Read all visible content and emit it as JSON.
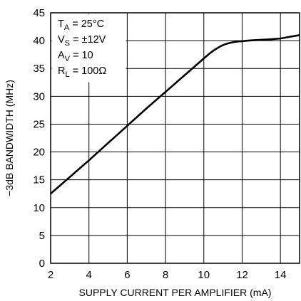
{
  "chart_data": {
    "type": "line",
    "xlabel": "SUPPLY CURRENT PER AMPLIFIER (mA)",
    "ylabel": "−3dB BANDWIDTH (MHz)",
    "xlim": [
      2,
      15
    ],
    "ylim": [
      0,
      45
    ],
    "x_ticks": [
      2,
      4,
      6,
      8,
      10,
      12,
      14
    ],
    "y_ticks": [
      0,
      5,
      10,
      15,
      20,
      25,
      30,
      35,
      40,
      45
    ],
    "grid": true,
    "conditions": [
      {
        "main": "T",
        "sub": "A",
        "rest": " = 25°C"
      },
      {
        "main": "V",
        "sub": "S",
        "rest": " = ±12V"
      },
      {
        "main": "A",
        "sub": "V",
        "rest": " = 10"
      },
      {
        "main": "R",
        "sub": "L",
        "rest": " = 100Ω"
      }
    ],
    "series": [
      {
        "x": [
          2,
          3,
          4,
          5,
          6,
          7,
          8,
          9,
          10,
          10.5,
          11,
          11.5,
          12,
          12.5,
          13,
          13.5,
          14,
          14.5,
          15
        ],
        "y": [
          12.5,
          15.5,
          18.5,
          21.6,
          24.7,
          27.8,
          30.8,
          33.8,
          36.8,
          38.2,
          39.2,
          39.7,
          39.9,
          40.05,
          40.15,
          40.25,
          40.4,
          40.7,
          41.0
        ]
      }
    ]
  }
}
